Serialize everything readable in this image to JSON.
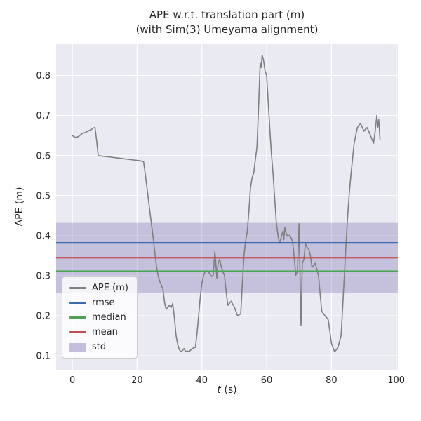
{
  "chart_data": {
    "type": "line",
    "title": "APE w.r.t. translation part (m)",
    "subtitle": "(with Sim(3) Umeyama alignment)",
    "xlabel": "t (s)",
    "xlabel_var": "t",
    "xlabel_unit": " (s)",
    "ylabel": "APE (m)",
    "xlim": [
      -5,
      100.5
    ],
    "ylim": [
      0.065,
      0.88
    ],
    "xticks": [
      0,
      20,
      40,
      60,
      80,
      100
    ],
    "yticks": [
      0.1,
      0.2,
      0.3,
      0.4,
      0.5,
      0.6,
      0.7,
      0.8
    ],
    "grid": true,
    "legend_position": "lower left",
    "stats": {
      "rmse": 0.382,
      "median": 0.311,
      "mean": 0.345,
      "std": 0.087,
      "std_band": [
        0.258,
        0.432
      ]
    },
    "colors": {
      "plot_bg": "#eaeaf2",
      "grid": "#ffffff",
      "ape": "#7f7f7f",
      "rmse": "#3d6bb3",
      "median": "#4aa453",
      "mean": "#c44e52",
      "std": "#8172b2",
      "text": "#262626"
    },
    "legend": [
      {
        "key": "ape",
        "label": "APE (m)",
        "color": "#7f7f7f",
        "type": "line"
      },
      {
        "key": "rmse",
        "label": "rmse",
        "color": "#3d6bb3",
        "type": "line"
      },
      {
        "key": "median",
        "label": "median",
        "color": "#4aa453",
        "type": "line"
      },
      {
        "key": "mean",
        "label": "mean",
        "color": "#c44e52",
        "type": "line"
      },
      {
        "key": "std",
        "label": "std",
        "color": "#8172b2",
        "type": "patch"
      }
    ],
    "series": [
      {
        "name": "APE (m)",
        "points": [
          [
            0,
            0.65
          ],
          [
            1,
            0.645
          ],
          [
            2,
            0.648
          ],
          [
            3,
            0.655
          ],
          [
            4,
            0.658
          ],
          [
            5,
            0.662
          ],
          [
            6,
            0.666
          ],
          [
            6.5,
            0.669
          ],
          [
            7,
            0.67
          ],
          [
            7.5,
            0.638
          ],
          [
            8,
            0.6
          ],
          [
            10,
            0.598
          ],
          [
            12,
            0.596
          ],
          [
            14,
            0.594
          ],
          [
            16,
            0.592
          ],
          [
            18,
            0.59
          ],
          [
            20,
            0.588
          ],
          [
            21,
            0.587
          ],
          [
            22,
            0.585
          ],
          [
            22.5,
            0.556
          ],
          [
            23,
            0.522
          ],
          [
            24,
            0.456
          ],
          [
            25,
            0.392
          ],
          [
            25.5,
            0.356
          ],
          [
            26,
            0.322
          ],
          [
            26.5,
            0.3
          ],
          [
            27,
            0.286
          ],
          [
            27.5,
            0.276
          ],
          [
            28,
            0.266
          ],
          [
            28.5,
            0.232
          ],
          [
            29,
            0.216
          ],
          [
            29.5,
            0.222
          ],
          [
            30,
            0.226
          ],
          [
            30.5,
            0.22
          ],
          [
            31,
            0.231
          ],
          [
            31.5,
            0.196
          ],
          [
            32,
            0.152
          ],
          [
            32.5,
            0.13
          ],
          [
            33,
            0.116
          ],
          [
            33.5,
            0.11
          ],
          [
            34,
            0.113
          ],
          [
            34.5,
            0.118
          ],
          [
            35,
            0.11
          ],
          [
            35.5,
            0.112
          ],
          [
            36,
            0.11
          ],
          [
            36.5,
            0.114
          ],
          [
            37,
            0.118
          ],
          [
            37.5,
            0.12
          ],
          [
            38,
            0.121
          ],
          [
            38.5,
            0.156
          ],
          [
            39,
            0.2
          ],
          [
            39.5,
            0.246
          ],
          [
            40,
            0.281
          ],
          [
            40.5,
            0.3
          ],
          [
            41,
            0.31
          ],
          [
            41.5,
            0.312
          ],
          [
            42,
            0.309
          ],
          [
            42.5,
            0.304
          ],
          [
            43,
            0.298
          ],
          [
            43.5,
            0.301
          ],
          [
            44,
            0.36
          ],
          [
            44.3,
            0.331
          ],
          [
            44.6,
            0.294
          ],
          [
            45,
            0.33
          ],
          [
            45.5,
            0.341
          ],
          [
            46,
            0.321
          ],
          [
            46.5,
            0.31
          ],
          [
            47,
            0.3
          ],
          [
            47.5,
            0.261
          ],
          [
            48,
            0.226
          ],
          [
            48.5,
            0.231
          ],
          [
            49,
            0.236
          ],
          [
            49.5,
            0.229
          ],
          [
            50,
            0.222
          ],
          [
            50.5,
            0.211
          ],
          [
            51,
            0.2
          ],
          [
            51.5,
            0.202
          ],
          [
            52,
            0.205
          ],
          [
            52.5,
            0.28
          ],
          [
            53,
            0.35
          ],
          [
            53.5,
            0.386
          ],
          [
            54,
            0.411
          ],
          [
            54.5,
            0.461
          ],
          [
            55,
            0.52
          ],
          [
            55.5,
            0.545
          ],
          [
            56,
            0.556
          ],
          [
            56.5,
            0.59
          ],
          [
            57,
            0.621
          ],
          [
            57.5,
            0.72
          ],
          [
            58,
            0.831
          ],
          [
            58.3,
            0.82
          ],
          [
            58.6,
            0.851
          ],
          [
            59,
            0.84
          ],
          [
            59.5,
            0.812
          ],
          [
            60,
            0.8
          ],
          [
            60.5,
            0.731
          ],
          [
            61,
            0.661
          ],
          [
            61.5,
            0.601
          ],
          [
            62,
            0.551
          ],
          [
            62.5,
            0.49
          ],
          [
            63,
            0.431
          ],
          [
            63.5,
            0.4
          ],
          [
            64,
            0.381
          ],
          [
            64.5,
            0.396
          ],
          [
            65,
            0.411
          ],
          [
            65.3,
            0.39
          ],
          [
            65.6,
            0.421
          ],
          [
            66,
            0.406
          ],
          [
            66.5,
            0.398
          ],
          [
            67,
            0.401
          ],
          [
            67.5,
            0.395
          ],
          [
            68,
            0.386
          ],
          [
            68.5,
            0.345
          ],
          [
            69,
            0.301
          ],
          [
            69.5,
            0.311
          ],
          [
            70,
            0.43
          ],
          [
            70.3,
            0.3
          ],
          [
            70.6,
            0.175
          ],
          [
            71,
            0.33
          ],
          [
            71.5,
            0.341
          ],
          [
            72,
            0.38
          ],
          [
            72.5,
            0.371
          ],
          [
            73,
            0.366
          ],
          [
            73.5,
            0.35
          ],
          [
            74,
            0.321
          ],
          [
            74.5,
            0.326
          ],
          [
            75,
            0.331
          ],
          [
            75.5,
            0.316
          ],
          [
            76,
            0.3
          ],
          [
            76.5,
            0.256
          ],
          [
            77,
            0.211
          ],
          [
            77.5,
            0.206
          ],
          [
            78,
            0.2
          ],
          [
            78.5,
            0.196
          ],
          [
            79,
            0.19
          ],
          [
            79.5,
            0.161
          ],
          [
            80,
            0.131
          ],
          [
            80.5,
            0.12
          ],
          [
            81,
            0.11
          ],
          [
            81.5,
            0.115
          ],
          [
            82,
            0.121
          ],
          [
            82.5,
            0.136
          ],
          [
            83,
            0.151
          ],
          [
            83.5,
            0.226
          ],
          [
            84,
            0.3
          ],
          [
            84.5,
            0.376
          ],
          [
            85,
            0.45
          ],
          [
            85.5,
            0.506
          ],
          [
            86,
            0.551
          ],
          [
            86.5,
            0.591
          ],
          [
            87,
            0.63
          ],
          [
            87.5,
            0.651
          ],
          [
            88,
            0.67
          ],
          [
            88.5,
            0.676
          ],
          [
            89,
            0.68
          ],
          [
            89.5,
            0.671
          ],
          [
            90,
            0.661
          ],
          [
            90.5,
            0.666
          ],
          [
            91,
            0.67
          ],
          [
            91.5,
            0.661
          ],
          [
            92,
            0.651
          ],
          [
            92.5,
            0.641
          ],
          [
            93,
            0.631
          ],
          [
            93.5,
            0.661
          ],
          [
            94,
            0.7
          ],
          [
            94.3,
            0.671
          ],
          [
            94.6,
            0.69
          ],
          [
            95,
            0.641
          ]
        ]
      }
    ]
  }
}
